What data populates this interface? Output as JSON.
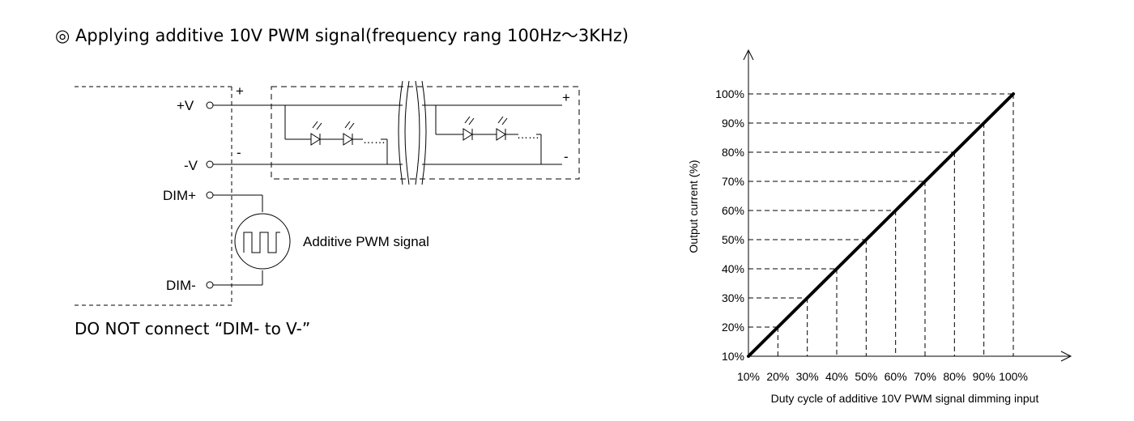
{
  "heading": {
    "symbol": "◎",
    "text": "Applying additive 10V PWM signal(frequency rang 100Hz～3KHz)"
  },
  "circuit": {
    "terminals": {
      "pos_v": "+V",
      "neg_v": "-V",
      "dim_pos": "DIM+",
      "dim_neg": "DIM-"
    },
    "polarity_plus": "+",
    "polarity_minus": "-",
    "polarity_plus_right": "+",
    "polarity_minus_right": "-",
    "signal_label": "Additive PWM signal",
    "led_ellipsis": "……"
  },
  "warning": "DO NOT connect “DIM- to V-”",
  "chart_data": {
    "type": "line",
    "xlabel": "Duty cycle of additive 10V PWM signal dimming input",
    "ylabel": "Output current (%)",
    "x_ticks": [
      "10%",
      "20%",
      "30%",
      "40%",
      "50%",
      "60%",
      "70%",
      "80%",
      "90%",
      "100%"
    ],
    "y_ticks": [
      "10%",
      "20%",
      "30%",
      "40%",
      "50%",
      "60%",
      "70%",
      "80%",
      "90%",
      "100%"
    ],
    "xlim": [
      10,
      100
    ],
    "ylim": [
      10,
      100
    ],
    "series": [
      {
        "x": [
          10,
          20,
          30,
          40,
          50,
          60,
          70,
          80,
          90,
          100
        ],
        "y": [
          10,
          20,
          30,
          40,
          50,
          60,
          70,
          80,
          90,
          100
        ]
      }
    ],
    "guide_lines": "dashed"
  }
}
